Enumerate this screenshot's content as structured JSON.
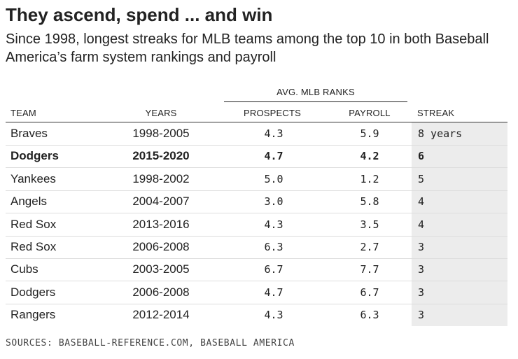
{
  "title": "They ascend, spend ... and win",
  "subtitle": "Since 1998, longest streaks for MLB teams among the top 10 in both Baseball America’s farm system rankings and payroll",
  "sources": "SOURCES: BASEBALL-REFERENCE.COM, BASEBALL AMERICA",
  "colors": {
    "text": "#222222",
    "streak_column_bg": "#ececec",
    "row_divider": "#dddddd"
  },
  "chart_data": {
    "type": "table",
    "title": "They ascend, spend ... and win",
    "subtitle": "Since 1998, longest streaks for MLB teams among the top 10 in both Baseball America’s farm system rankings and payroll",
    "group_header": "AVG. MLB RANKS",
    "columns": [
      "TEAM",
      "YEARS",
      "PROSPECTS",
      "PAYROLL",
      "STREAK"
    ],
    "rows": [
      {
        "team": "Braves",
        "years": "1998-2005",
        "prospects": "4.3",
        "payroll": "5.9",
        "streak": "8 years",
        "highlight": false
      },
      {
        "team": "Dodgers",
        "years": "2015-2020",
        "prospects": "4.7",
        "payroll": "4.2",
        "streak": "6",
        "highlight": true
      },
      {
        "team": "Yankees",
        "years": "1998-2002",
        "prospects": "5.0",
        "payroll": "1.2",
        "streak": "5",
        "highlight": false
      },
      {
        "team": "Angels",
        "years": "2004-2007",
        "prospects": "3.0",
        "payroll": "5.8",
        "streak": "4",
        "highlight": false
      },
      {
        "team": "Red Sox",
        "years": "2013-2016",
        "prospects": "4.3",
        "payroll": "3.5",
        "streak": "4",
        "highlight": false
      },
      {
        "team": "Red Sox",
        "years": "2006-2008",
        "prospects": "6.3",
        "payroll": "2.7",
        "streak": "3",
        "highlight": false
      },
      {
        "team": "Cubs",
        "years": "2003-2005",
        "prospects": "6.7",
        "payroll": "7.7",
        "streak": "3",
        "highlight": false
      },
      {
        "team": "Dodgers",
        "years": "2006-2008",
        "prospects": "4.7",
        "payroll": "6.7",
        "streak": "3",
        "highlight": false
      },
      {
        "team": "Rangers",
        "years": "2012-2014",
        "prospects": "4.3",
        "payroll": "6.3",
        "streak": "3",
        "highlight": false
      }
    ],
    "source": "SOURCES: BASEBALL-REFERENCE.COM, BASEBALL AMERICA"
  }
}
